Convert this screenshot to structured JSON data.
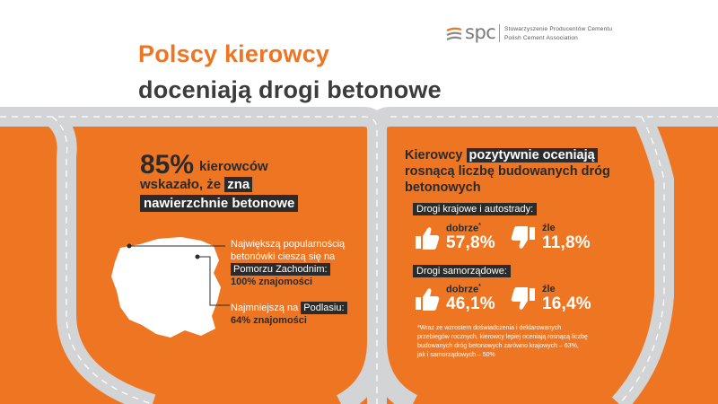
{
  "header": {
    "title_line1": "Polscy kierowcy",
    "title_line2": "doceniają drogi betonowe"
  },
  "logo": {
    "word": "spc",
    "line1": "Stowarzyszenie  Producentów  Cementu",
    "line2": "Polish  Cement   Association"
  },
  "left": {
    "big_number": "85%",
    "word_kierowcow": "kierowców",
    "line2_plain": "wskazało, że ",
    "line2_highlight": "zna",
    "line3_highlight": "nawierzchnie betonowe",
    "info1_line": "Największą popularnością betonówki cieszą się na",
    "info1_region": "Pomorzu Zachodnim:",
    "info1_value": "100% znajomości",
    "info2_plain": "Najmniejszą na ",
    "info2_region": "Podlasiu:",
    "info2_value": "64% znajomości"
  },
  "right": {
    "title_plain": "Kierowcy ",
    "title_highlight": "pozytywnie oceniają",
    "title_rest": "rosnącą liczbę budowanych dróg betonowych",
    "category1": "Drogi krajowe i autostrady:",
    "category2": "Drogi samorządowe:",
    "good_label": "dobrze",
    "good_mark": "*",
    "bad_label": "źle",
    "cat1_good": "57,8%",
    "cat1_bad": "11,8%",
    "cat2_good": "46,1%",
    "cat2_bad": "16,4%",
    "footnote": "*Wraz ze wzrostem doświadczenia i deklarowanych przebiegów rocznych, kierowcy lepiej oceniają rosnącą liczbę budowanych dróg betonowych zarówno krajowych – 63%, jak i samorządowych – 50%"
  },
  "icons": {
    "thumbs_up": "thumbs-up-icon",
    "thumbs_down": "thumbs-down-icon",
    "map": "poland-map-icon"
  },
  "colors": {
    "orange": "#ee7623",
    "dark": "#2b2b2b",
    "road": "#d0d1d3"
  }
}
